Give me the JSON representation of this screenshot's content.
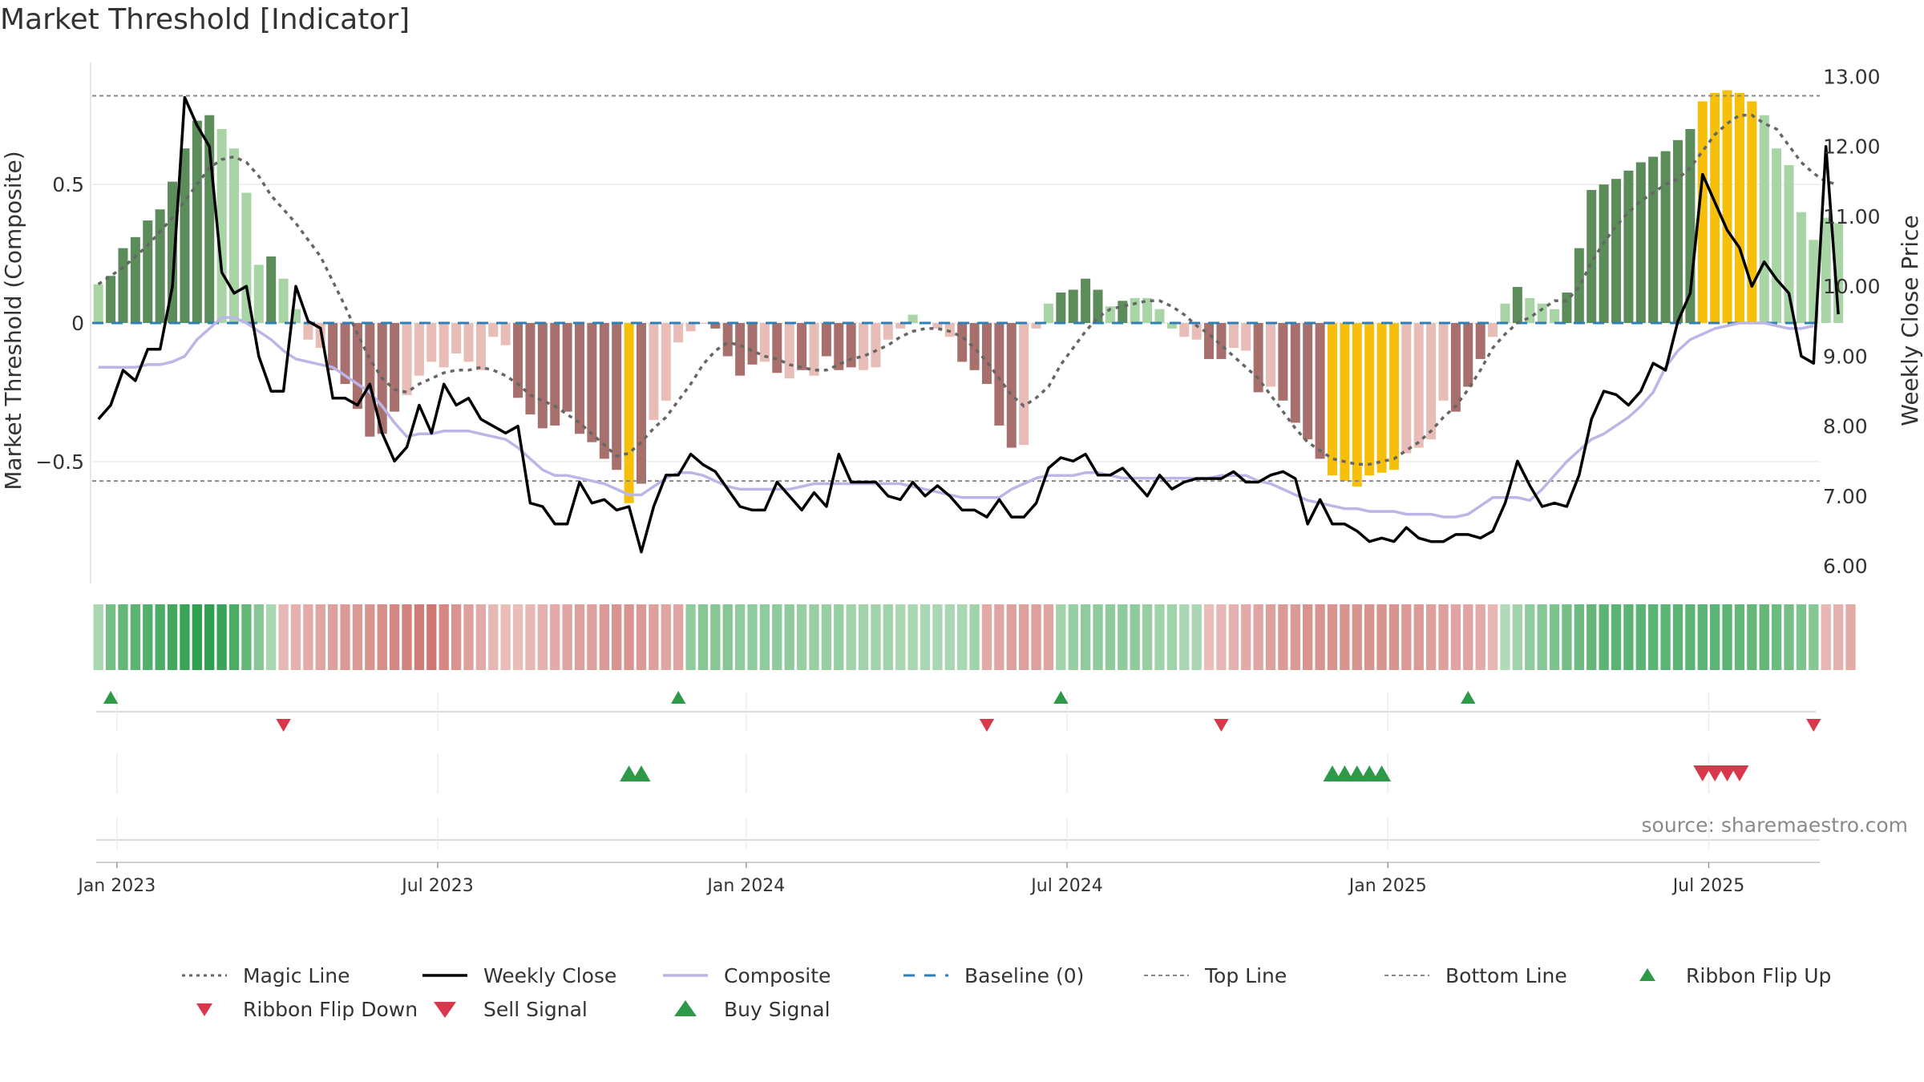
{
  "title": "Market Threshold [Indicator]",
  "source_text": "source: sharemaestro.com",
  "colors": {
    "strong_green": "#5b8c5a",
    "light_green": "#a9d4a6",
    "highlight": "#f6bf0a",
    "strong_red": "#a8706c",
    "light_red": "#e8bcb7",
    "close": "#000000",
    "composite": "#bcb6e6",
    "magic": "#666666",
    "baseline": "#2e7fb8",
    "buy": "#2e9a49",
    "sell": "#d9374b"
  },
  "legend": [
    {
      "label": "Magic Line",
      "icon": "dotted-line"
    },
    {
      "label": "Weekly Close",
      "icon": "solid-line"
    },
    {
      "label": "Composite",
      "icon": "solid-line"
    },
    {
      "label": "Baseline (0)",
      "icon": "dashed-line"
    },
    {
      "label": "Top Line",
      "icon": "dotted-line"
    },
    {
      "label": "Bottom Line",
      "icon": "dotted-line"
    },
    {
      "label": "Ribbon Flip Up",
      "icon": "triangle-up"
    },
    {
      "label": "Ribbon Flip Down",
      "icon": "triangle-down"
    },
    {
      "label": "Sell Signal",
      "icon": "triangle-down"
    },
    {
      "label": "Buy Signal",
      "icon": "triangle-up"
    }
  ],
  "chart_data": {
    "type": "bar",
    "title": "Market Threshold [Indicator]",
    "ylabel": "Market Threshold (Composite)",
    "y2label": "Weekly Close Price",
    "ylim": [
      -0.94,
      0.94
    ],
    "y2lim": [
      5.75,
      13.2
    ],
    "yticks": [
      0.5,
      0,
      -0.5
    ],
    "ytick_labels": [
      "0.5",
      "0",
      "−0.5"
    ],
    "y2ticks": [
      13,
      12,
      11,
      10,
      9,
      8,
      7,
      6
    ],
    "y2tick_labels": [
      "13.00",
      "12.00",
      "11.00",
      "10.00",
      "9.00",
      "8.00",
      "7.00",
      "6.00"
    ],
    "xlim": [
      -0.5,
      139.5
    ],
    "xticks": [
      1.5,
      27.5,
      52.5,
      78.5,
      104.5,
      130.5
    ],
    "xtick_labels": [
      "Jan 2023",
      "Jul 2023",
      "Jan 2024",
      "Jul 2024",
      "Jan 2025",
      "Jul 2025"
    ],
    "top_line": 0.82,
    "bottom_line": -0.57,
    "baseline": 0,
    "threshold": [
      0.14,
      0.17,
      0.27,
      0.31,
      0.37,
      0.41,
      0.51,
      0.63,
      0.73,
      0.75,
      0.7,
      0.63,
      0.47,
      0.21,
      0.24,
      0.16,
      0.05,
      -0.06,
      -0.09,
      -0.17,
      -0.22,
      -0.31,
      -0.41,
      -0.4,
      -0.32,
      -0.26,
      -0.19,
      -0.14,
      -0.16,
      -0.11,
      -0.14,
      -0.17,
      -0.05,
      -0.08,
      -0.27,
      -0.33,
      -0.38,
      -0.37,
      -0.32,
      -0.4,
      -0.43,
      -0.49,
      -0.53,
      -0.65,
      -0.58,
      -0.35,
      -0.28,
      -0.07,
      -0.03,
      0,
      -0.02,
      -0.12,
      -0.19,
      -0.15,
      -0.14,
      -0.18,
      -0.2,
      -0.17,
      -0.19,
      -0.12,
      -0.17,
      -0.16,
      -0.17,
      -0.16,
      -0.06,
      -0.02,
      0.03,
      0,
      -0.02,
      -0.05,
      -0.14,
      -0.17,
      -0.22,
      -0.37,
      -0.45,
      -0.44,
      -0.02,
      0.07,
      0.11,
      0.12,
      0.16,
      0.12,
      0.06,
      0.08,
      0.09,
      0.09,
      0.05,
      -0.02,
      -0.05,
      -0.06,
      -0.13,
      -0.13,
      -0.09,
      -0.1,
      -0.25,
      -0.23,
      -0.28,
      -0.36,
      -0.42,
      -0.49,
      -0.55,
      -0.57,
      -0.59,
      -0.55,
      -0.54,
      -0.53,
      -0.47,
      -0.45,
      -0.42,
      -0.28,
      -0.32,
      -0.23,
      -0.13,
      -0.05,
      0.07,
      0.13,
      0.09,
      0.07,
      0.05,
      0.11,
      0.27,
      0.48,
      0.5,
      0.52,
      0.55,
      0.58,
      0.6,
      0.62,
      0.66,
      0.7,
      0.8,
      0.83,
      0.84,
      0.83,
      0.8,
      0.75,
      0.63,
      0.57,
      0.4,
      0.3,
      0.38,
      0.36
    ],
    "bar_classes": [
      "L",
      "S",
      "S",
      "S",
      "S",
      "S",
      "S",
      "S",
      "S",
      "S",
      "L",
      "L",
      "L",
      "L",
      "S",
      "L",
      "L",
      "l",
      "l",
      "s",
      "s",
      "s",
      "s",
      "s",
      "s",
      "l",
      "l",
      "l",
      "l",
      "l",
      "l",
      "l",
      "l",
      "l",
      "s",
      "s",
      "s",
      "s",
      "s",
      "s",
      "s",
      "s",
      "s",
      "H",
      "s",
      "l",
      "l",
      "l",
      "l",
      "l",
      "s",
      "s",
      "s",
      "s",
      "l",
      "s",
      "l",
      "s",
      "l",
      "s",
      "s",
      "s",
      "l",
      "l",
      "l",
      "l",
      "L",
      "L",
      "l",
      "l",
      "s",
      "s",
      "s",
      "s",
      "s",
      "l",
      "l",
      "L",
      "S",
      "S",
      "S",
      "S",
      "L",
      "S",
      "L",
      "L",
      "L",
      "L",
      "l",
      "l",
      "s",
      "s",
      "l",
      "l",
      "s",
      "l",
      "s",
      "s",
      "s",
      "s",
      "H",
      "H",
      "H",
      "H",
      "H",
      "H",
      "l",
      "l",
      "l",
      "l",
      "s",
      "s",
      "s",
      "l",
      "L",
      "S",
      "L",
      "L",
      "L",
      "S",
      "S",
      "S",
      "S",
      "S",
      "S",
      "S",
      "S",
      "S",
      "S",
      "S",
      "H",
      "H",
      "H",
      "H",
      "H",
      "L",
      "L",
      "L",
      "L",
      "L",
      "L",
      "L"
    ],
    "magic": [
      0.14,
      0.17,
      0.2,
      0.24,
      0.28,
      0.33,
      0.38,
      0.44,
      0.5,
      0.56,
      0.59,
      0.6,
      0.58,
      0.53,
      0.46,
      0.41,
      0.36,
      0.3,
      0.24,
      0.15,
      0.06,
      -0.04,
      -0.13,
      -0.2,
      -0.24,
      -0.25,
      -0.22,
      -0.2,
      -0.18,
      -0.17,
      -0.17,
      -0.16,
      -0.17,
      -0.19,
      -0.22,
      -0.26,
      -0.28,
      -0.3,
      -0.33,
      -0.36,
      -0.4,
      -0.44,
      -0.48,
      -0.47,
      -0.43,
      -0.38,
      -0.34,
      -0.28,
      -0.22,
      -0.15,
      -0.1,
      -0.07,
      -0.08,
      -0.1,
      -0.12,
      -0.13,
      -0.15,
      -0.16,
      -0.17,
      -0.17,
      -0.15,
      -0.13,
      -0.12,
      -0.1,
      -0.08,
      -0.05,
      -0.03,
      -0.02,
      -0.02,
      -0.03,
      -0.05,
      -0.09,
      -0.14,
      -0.2,
      -0.26,
      -0.3,
      -0.27,
      -0.23,
      -0.15,
      -0.09,
      -0.03,
      0.02,
      0.05,
      0.06,
      0.07,
      0.08,
      0.08,
      0.06,
      0.03,
      -0.01,
      -0.04,
      -0.08,
      -0.12,
      -0.16,
      -0.2,
      -0.26,
      -0.32,
      -0.38,
      -0.43,
      -0.46,
      -0.49,
      -0.5,
      -0.51,
      -0.51,
      -0.5,
      -0.49,
      -0.46,
      -0.43,
      -0.39,
      -0.34,
      -0.3,
      -0.24,
      -0.17,
      -0.09,
      -0.04,
      0.0,
      0.02,
      0.05,
      0.08,
      0.08,
      0.13,
      0.22,
      0.29,
      0.35,
      0.4,
      0.44,
      0.47,
      0.5,
      0.52,
      0.56,
      0.62,
      0.68,
      0.72,
      0.75,
      0.75,
      0.72,
      0.7,
      0.64,
      0.58,
      0.54,
      0.51,
      0.5
    ],
    "close": [
      8.1,
      8.3,
      8.8,
      8.65,
      9.1,
      9.1,
      10.0,
      12.7,
      12.3,
      12.0,
      10.2,
      9.9,
      10.0,
      9.0,
      8.5,
      8.5,
      10.0,
      9.5,
      9.4,
      8.4,
      8.4,
      8.3,
      8.6,
      7.9,
      7.5,
      7.7,
      8.3,
      7.9,
      8.6,
      8.3,
      8.4,
      8.1,
      8.0,
      7.9,
      8.0,
      6.9,
      6.85,
      6.6,
      6.6,
      7.2,
      6.9,
      6.95,
      6.8,
      6.85,
      6.2,
      6.85,
      7.3,
      7.3,
      7.6,
      7.45,
      7.35,
      7.1,
      6.85,
      6.8,
      6.8,
      7.2,
      7.0,
      6.8,
      7.05,
      6.85,
      7.6,
      7.2,
      7.2,
      7.2,
      7.0,
      6.95,
      7.2,
      7.0,
      7.15,
      7.0,
      6.8,
      6.8,
      6.7,
      6.95,
      6.7,
      6.7,
      6.9,
      7.4,
      7.55,
      7.5,
      7.6,
      7.3,
      7.3,
      7.4,
      7.2,
      7.0,
      7.3,
      7.1,
      7.2,
      7.25,
      7.25,
      7.25,
      7.35,
      7.2,
      7.2,
      7.3,
      7.35,
      7.25,
      6.6,
      6.95,
      6.6,
      6.6,
      6.5,
      6.35,
      6.4,
      6.35,
      6.55,
      6.4,
      6.35,
      6.35,
      6.45,
      6.45,
      6.4,
      6.5,
      6.9,
      7.5,
      7.15,
      6.85,
      6.9,
      6.85,
      7.3,
      8.1,
      8.5,
      8.45,
      8.3,
      8.5,
      8.9,
      8.8,
      9.5,
      9.9,
      11.6,
      11.2,
      10.8,
      10.55,
      10.0,
      10.35,
      10.1,
      9.9,
      9.0,
      8.9,
      12.0,
      9.6
    ],
    "composite": [
      -0.16,
      -0.16,
      -0.16,
      -0.16,
      -0.15,
      -0.15,
      -0.14,
      -0.12,
      -0.06,
      -0.02,
      0.02,
      0.02,
      0.0,
      -0.03,
      -0.06,
      -0.1,
      -0.13,
      -0.14,
      -0.15,
      -0.16,
      -0.19,
      -0.22,
      -0.25,
      -0.3,
      -0.36,
      -0.41,
      -0.4,
      -0.4,
      -0.39,
      -0.39,
      -0.39,
      -0.4,
      -0.41,
      -0.42,
      -0.45,
      -0.49,
      -0.53,
      -0.55,
      -0.55,
      -0.56,
      -0.57,
      -0.58,
      -0.6,
      -0.62,
      -0.62,
      -0.59,
      -0.56,
      -0.54,
      -0.54,
      -0.55,
      -0.57,
      -0.59,
      -0.6,
      -0.6,
      -0.6,
      -0.6,
      -0.6,
      -0.59,
      -0.58,
      -0.58,
      -0.58,
      -0.58,
      -0.58,
      -0.58,
      -0.58,
      -0.58,
      -0.59,
      -0.6,
      -0.61,
      -0.62,
      -0.63,
      -0.63,
      -0.63,
      -0.63,
      -0.6,
      -0.58,
      -0.56,
      -0.55,
      -0.55,
      -0.55,
      -0.54,
      -0.54,
      -0.55,
      -0.56,
      -0.56,
      -0.56,
      -0.56,
      -0.56,
      -0.56,
      -0.56,
      -0.56,
      -0.55,
      -0.55,
      -0.55,
      -0.57,
      -0.58,
      -0.6,
      -0.62,
      -0.64,
      -0.65,
      -0.66,
      -0.67,
      -0.67,
      -0.68,
      -0.68,
      -0.68,
      -0.69,
      -0.69,
      -0.69,
      -0.7,
      -0.7,
      -0.69,
      -0.66,
      -0.63,
      -0.63,
      -0.63,
      -0.64,
      -0.6,
      -0.55,
      -0.5,
      -0.46,
      -0.42,
      -0.4,
      -0.37,
      -0.34,
      -0.3,
      -0.25,
      -0.16,
      -0.1,
      -0.06,
      -0.04,
      -0.02,
      -0.01,
      0.0,
      0.0,
      0.0,
      -0.01,
      -0.02,
      -0.02,
      -0.01
    ],
    "ribbon": [
      0.3,
      0.6,
      0.7,
      0.75,
      0.8,
      0.85,
      0.9,
      0.95,
      1,
      1,
      0.95,
      0.85,
      0.7,
      0.5,
      0.3,
      -0.3,
      -0.35,
      -0.4,
      -0.45,
      -0.5,
      -0.55,
      -0.55,
      -0.6,
      -0.65,
      -0.7,
      -0.75,
      -0.8,
      -0.85,
      -0.7,
      -0.6,
      -0.5,
      -0.4,
      -0.3,
      -0.25,
      -0.25,
      -0.3,
      -0.35,
      -0.4,
      -0.45,
      -0.5,
      -0.5,
      -0.55,
      -0.6,
      -0.6,
      -0.55,
      -0.5,
      -0.45,
      -0.45,
      0.45,
      0.5,
      0.5,
      0.5,
      0.45,
      0.45,
      0.45,
      0.45,
      0.45,
      0.4,
      0.4,
      0.4,
      0.4,
      0.35,
      0.35,
      0.35,
      0.35,
      0.3,
      0.3,
      0.3,
      0.3,
      0.3,
      0.3,
      0.35,
      -0.4,
      -0.45,
      -0.5,
      -0.5,
      -0.5,
      -0.45,
      0.35,
      0.4,
      0.45,
      0.45,
      0.45,
      0.45,
      0.45,
      0.4,
      0.35,
      0.35,
      0.3,
      0.3,
      -0.25,
      -0.3,
      -0.35,
      -0.4,
      -0.45,
      -0.5,
      -0.55,
      -0.55,
      -0.6,
      -0.6,
      -0.6,
      -0.6,
      -0.6,
      -0.6,
      -0.6,
      -0.6,
      -0.55,
      -0.55,
      -0.5,
      -0.5,
      -0.45,
      -0.45,
      -0.4,
      -0.3,
      0.25,
      0.35,
      0.45,
      0.5,
      0.55,
      0.6,
      0.65,
      0.7,
      0.75,
      0.75,
      0.75,
      0.75,
      0.75,
      0.75,
      0.75,
      0.75,
      0.75,
      0.75,
      0.75,
      0.7,
      0.7,
      0.7,
      0.65,
      0.6,
      0.55,
      0.5,
      -0.3,
      -0.35,
      -0.4
    ],
    "ribbon_flip_up": [
      1,
      47,
      78,
      111
    ],
    "ribbon_flip_down": [
      15,
      72,
      91,
      139
    ],
    "buy_signals": [
      43,
      44,
      100,
      101,
      102,
      103,
      104
    ],
    "sell_signals": [
      130,
      131,
      132,
      133
    ]
  }
}
